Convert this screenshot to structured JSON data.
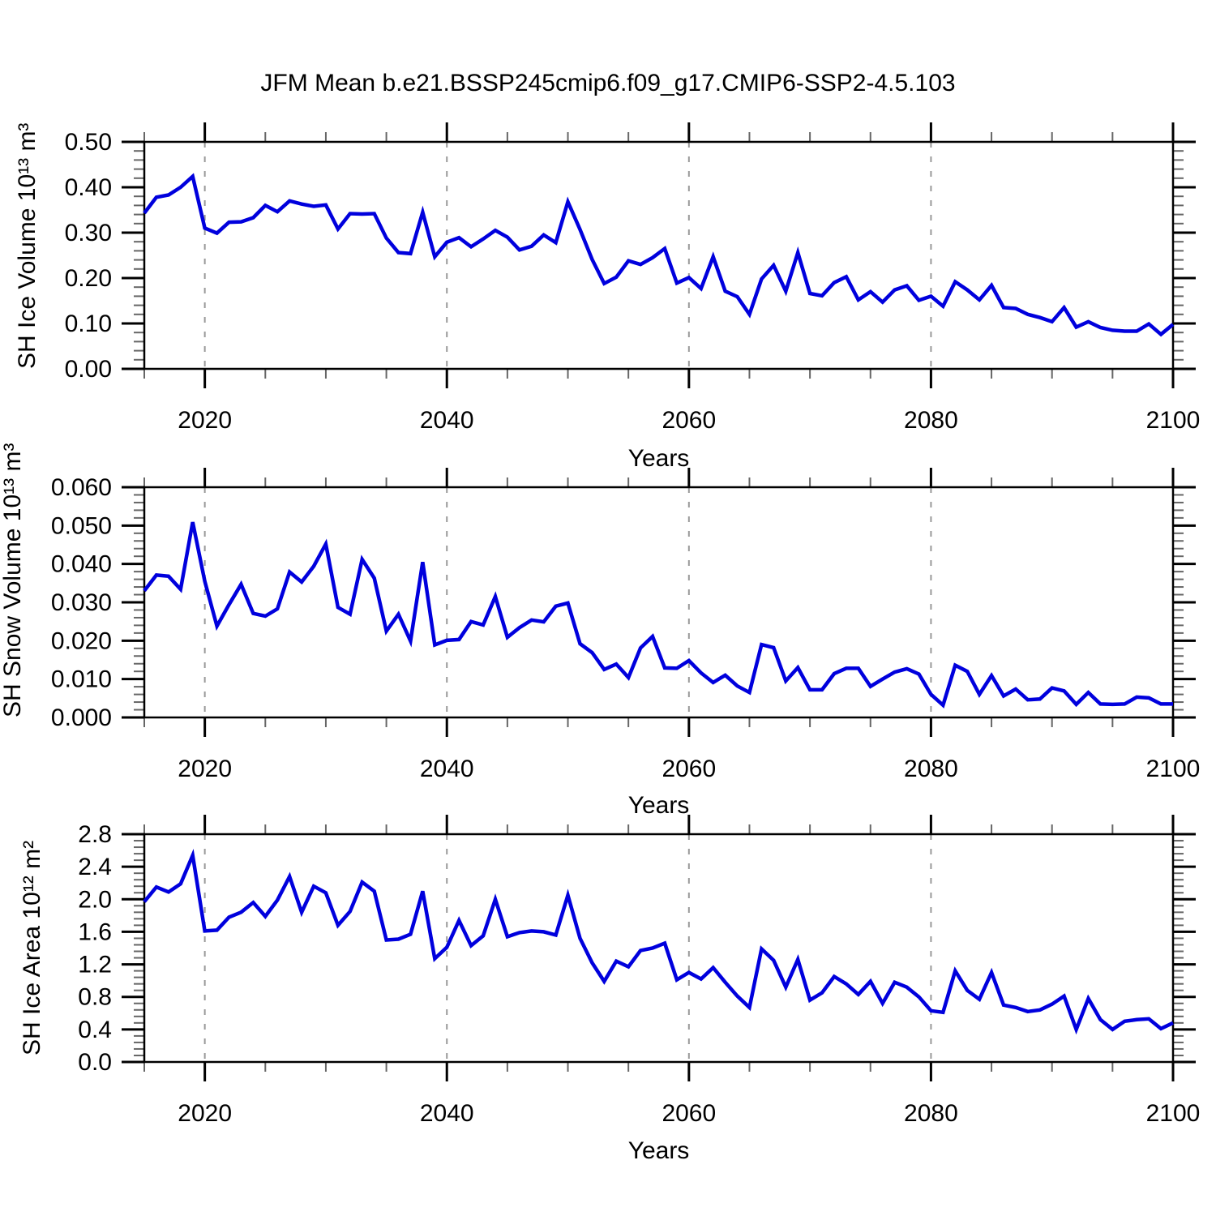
{
  "title": "JFM Mean b.e21.BSSP245cmip6.f09_g17.CMIP6-SSP2-4.5.103",
  "colors": {
    "line": "#0000dd",
    "grid": "#999999",
    "axis": "#000000",
    "minor_tick": "#666666",
    "background": "#ffffff"
  },
  "chart_data": [
    {
      "type": "line",
      "name": "sh-ice-volume",
      "ylabel": "SH Ice Volume 10¹³ m³",
      "xlabel": "Years",
      "xlim": [
        2015,
        2100
      ],
      "ylim": [
        0.0,
        0.5
      ],
      "x_ticks": [
        2020,
        2040,
        2060,
        2080,
        2100
      ],
      "x_tick_labels": [
        "2020",
        "2040",
        "2060",
        "2080",
        "2100"
      ],
      "x_minor_step": 5,
      "grid_x": [
        2020,
        2040,
        2060,
        2080
      ],
      "y_ticks": [
        0.0,
        0.1,
        0.2,
        0.3,
        0.4,
        0.5
      ],
      "y_tick_labels": [
        "0.00",
        "0.10",
        "0.20",
        "0.30",
        "0.40",
        "0.50"
      ],
      "y_minor_step": 0.02,
      "x_start": 2015,
      "x_step": 1,
      "values": [
        0.343,
        0.378,
        0.383,
        0.4,
        0.424,
        0.31,
        0.299,
        0.323,
        0.324,
        0.333,
        0.36,
        0.346,
        0.37,
        0.363,
        0.358,
        0.361,
        0.308,
        0.342,
        0.341,
        0.342,
        0.288,
        0.256,
        0.254,
        0.345,
        0.247,
        0.279,
        0.289,
        0.269,
        0.286,
        0.305,
        0.29,
        0.262,
        0.27,
        0.295,
        0.278,
        0.368,
        0.307,
        0.241,
        0.188,
        0.202,
        0.238,
        0.23,
        0.245,
        0.265,
        0.189,
        0.201,
        0.177,
        0.247,
        0.171,
        0.159,
        0.12,
        0.198,
        0.228,
        0.171,
        0.256,
        0.166,
        0.161,
        0.19,
        0.203,
        0.152,
        0.17,
        0.147,
        0.174,
        0.183,
        0.151,
        0.16,
        0.138,
        0.192,
        0.174,
        0.152,
        0.184,
        0.135,
        0.133,
        0.12,
        0.113,
        0.104,
        0.135,
        0.092,
        0.104,
        0.091,
        0.085,
        0.083,
        0.083,
        0.099,
        0.076,
        0.098
      ]
    },
    {
      "type": "line",
      "name": "sh-snow-volume",
      "ylabel": "SH Snow Volume 10¹³ m³",
      "xlabel": "Years",
      "xlim": [
        2015,
        2100
      ],
      "ylim": [
        0.0,
        0.06
      ],
      "x_ticks": [
        2020,
        2040,
        2060,
        2080,
        2100
      ],
      "x_tick_labels": [
        "2020",
        "2040",
        "2060",
        "2080",
        "2100"
      ],
      "x_minor_step": 5,
      "grid_x": [
        2020,
        2040,
        2060,
        2080
      ],
      "y_ticks": [
        0.0,
        0.01,
        0.02,
        0.03,
        0.04,
        0.05,
        0.06
      ],
      "y_tick_labels": [
        "0.000",
        "0.010",
        "0.020",
        "0.030",
        "0.040",
        "0.050",
        "0.060"
      ],
      "y_minor_step": 0.002,
      "x_start": 2015,
      "x_step": 1,
      "values": [
        0.033,
        0.0371,
        0.0368,
        0.0334,
        0.0509,
        0.0355,
        0.0238,
        0.0294,
        0.0347,
        0.0271,
        0.0264,
        0.0283,
        0.0379,
        0.0353,
        0.0394,
        0.0452,
        0.0287,
        0.0269,
        0.0412,
        0.0363,
        0.0225,
        0.0269,
        0.0199,
        0.0405,
        0.0189,
        0.0201,
        0.0203,
        0.025,
        0.0241,
        0.0315,
        0.0209,
        0.0234,
        0.0254,
        0.0249,
        0.029,
        0.0298,
        0.0192,
        0.0169,
        0.0125,
        0.0139,
        0.0104,
        0.0181,
        0.0211,
        0.0129,
        0.0128,
        0.0148,
        0.0116,
        0.0091,
        0.011,
        0.0082,
        0.0065,
        0.019,
        0.0182,
        0.0095,
        0.013,
        0.0072,
        0.0072,
        0.0114,
        0.0128,
        0.0128,
        0.0081,
        0.01,
        0.0118,
        0.0127,
        0.0113,
        0.006,
        0.0032,
        0.0136,
        0.012,
        0.006,
        0.0109,
        0.0056,
        0.0074,
        0.0046,
        0.0048,
        0.0077,
        0.0069,
        0.0034,
        0.0065,
        0.0035,
        0.0034,
        0.0035,
        0.0053,
        0.0051,
        0.0035,
        0.0035
      ]
    },
    {
      "type": "line",
      "name": "sh-ice-area",
      "ylabel": "SH Ice Area 10¹² m²",
      "xlabel": "Years",
      "xlim": [
        2015,
        2100
      ],
      "ylim": [
        0.0,
        2.8
      ],
      "x_ticks": [
        2020,
        2040,
        2060,
        2080,
        2100
      ],
      "x_tick_labels": [
        "2020",
        "2040",
        "2060",
        "2080",
        "2100"
      ],
      "x_minor_step": 5,
      "grid_x": [
        2020,
        2040,
        2060,
        2080
      ],
      "y_ticks": [
        0.0,
        0.4,
        0.8,
        1.2,
        1.6,
        2.0,
        2.4,
        2.8
      ],
      "y_tick_labels": [
        "0.0",
        "0.4",
        "0.8",
        "1.2",
        "1.6",
        "2.0",
        "2.4",
        "2.8"
      ],
      "y_minor_step": 0.08,
      "x_start": 2015,
      "x_step": 1,
      "values": [
        1.97,
        2.15,
        2.09,
        2.19,
        2.54,
        1.61,
        1.62,
        1.78,
        1.84,
        1.96,
        1.79,
        1.99,
        2.28,
        1.84,
        2.16,
        2.08,
        1.68,
        1.85,
        2.21,
        2.1,
        1.5,
        1.51,
        1.57,
        2.1,
        1.27,
        1.41,
        1.74,
        1.43,
        1.55,
        2.0,
        1.54,
        1.59,
        1.61,
        1.6,
        1.56,
        2.05,
        1.52,
        1.22,
        0.99,
        1.24,
        1.17,
        1.37,
        1.4,
        1.46,
        1.01,
        1.1,
        1.02,
        1.16,
        0.98,
        0.81,
        0.67,
        1.39,
        1.25,
        0.92,
        1.26,
        0.76,
        0.85,
        1.05,
        0.96,
        0.83,
        0.99,
        0.72,
        0.98,
        0.92,
        0.8,
        0.63,
        0.61,
        1.12,
        0.88,
        0.77,
        1.1,
        0.7,
        0.67,
        0.62,
        0.64,
        0.71,
        0.81,
        0.4,
        0.78,
        0.52,
        0.4,
        0.5,
        0.52,
        0.53,
        0.41,
        0.48
      ]
    }
  ]
}
